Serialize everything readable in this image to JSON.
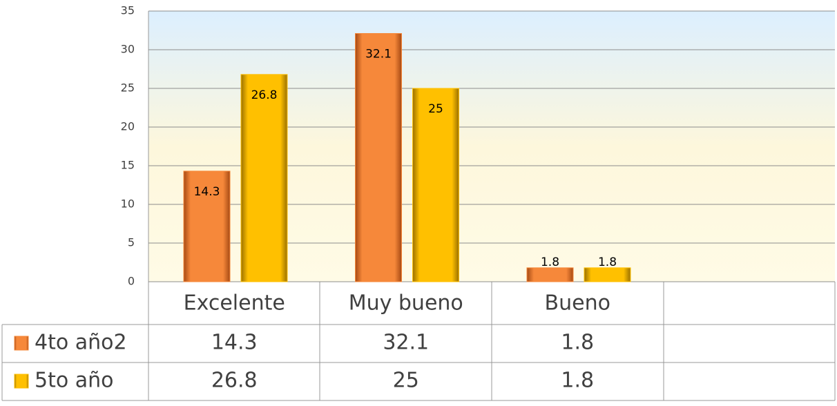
{
  "chart_data": {
    "type": "bar",
    "categories": [
      "Excelente",
      "Muy bueno",
      "Bueno",
      null
    ],
    "series": [
      {
        "name": "4to año2",
        "color": "#f6883a",
        "values": [
          14.3,
          32.1,
          1.8,
          null
        ]
      },
      {
        "name": "5to año",
        "color": "#ffc000",
        "values": [
          26.8,
          25,
          1.8,
          null
        ]
      }
    ],
    "ylim": [
      0,
      35
    ],
    "yticks": [
      0,
      5,
      10,
      15,
      20,
      25,
      30,
      35
    ],
    "grid": true
  }
}
